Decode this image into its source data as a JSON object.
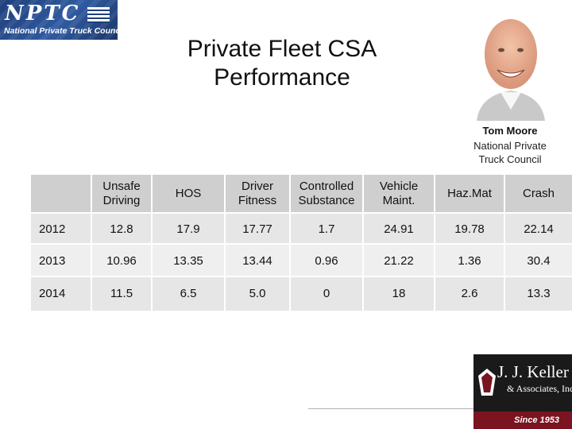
{
  "header": {
    "logo_mark": "NPTC",
    "logo_tagline": "National Private Truck Council",
    "title_line1": "Private Fleet CSA",
    "title_line2": "Performance"
  },
  "speaker": {
    "name": "Tom Moore",
    "org_line1": "National Private",
    "org_line2": "Truck Council"
  },
  "table": {
    "columns": [
      "",
      "Unsafe Driving",
      "HOS",
      "Driver Fitness",
      "Controlled Substance",
      "Vehicle Maint.",
      "Haz.Mat",
      "Crash"
    ],
    "rows": [
      [
        "2012",
        "12.8",
        "17.9",
        "17.77",
        "1.7",
        "24.91",
        "19.78",
        "22.14"
      ],
      [
        "2013",
        "10.96",
        "13.35",
        "13.44",
        "0.96",
        "21.22",
        "1.36",
        "30.4"
      ],
      [
        "2014",
        "11.5",
        "6.5",
        "5.0",
        "0",
        "18",
        "2.6",
        "13.3"
      ]
    ]
  },
  "footer_logo": {
    "name": "J. J. Keller",
    "subtitle": "& Associates, Inc.",
    "since": "Since 1953"
  },
  "colors": {
    "header_row": "#cfcfcf",
    "body_row": "#e6e6e6",
    "nptc_blue": "#2f5aa0",
    "keller_red": "#7a1420"
  }
}
